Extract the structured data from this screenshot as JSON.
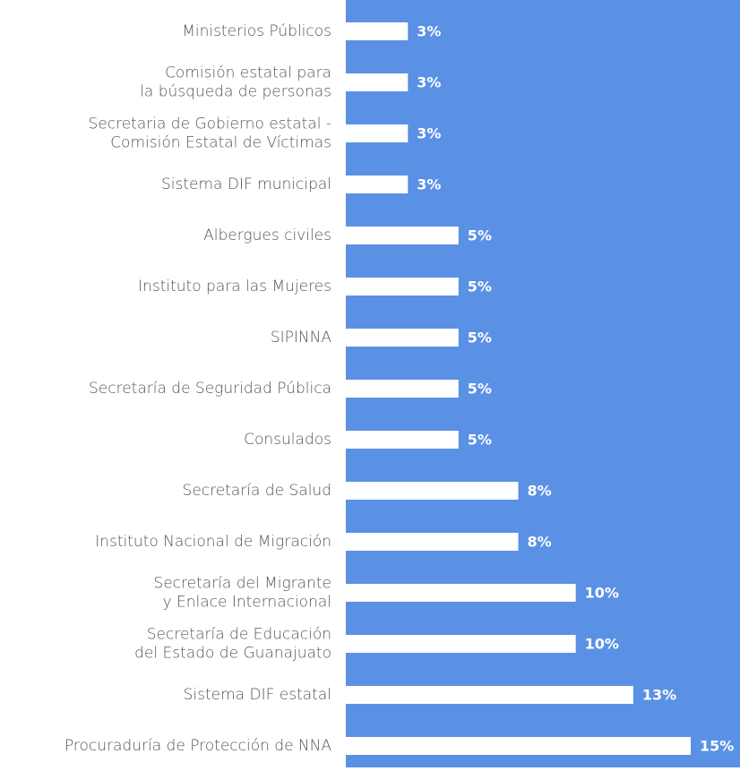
{
  "chart_data": {
    "type": "bar",
    "orientation": "horizontal",
    "categories": [
      [
        "Ministerios Públicos"
      ],
      [
        "Comisión estatal para",
        "la búsqueda de personas"
      ],
      [
        "Secretaria de Gobierno estatal -",
        "Comisión Estatal de Víctimas"
      ],
      [
        "Sistema DIF municipal"
      ],
      [
        "Albergues civiles"
      ],
      [
        "Instituto para las Mujeres"
      ],
      [
        "SIPINNA"
      ],
      [
        "Secretaría de Seguridad Pública"
      ],
      [
        "Consulados"
      ],
      [
        "Secretaría de Salud"
      ],
      [
        "Instituto Nacional de Migración"
      ],
      [
        "Secretaría del Migrante",
        "y Enlace Internacional"
      ],
      [
        "Secretaría de Educación",
        "del Estado de Guanajuato"
      ],
      [
        "Sistema DIF estatal"
      ],
      [
        "Procuraduría de Protección de NNA"
      ]
    ],
    "values": [
      2.7,
      2.7,
      2.7,
      2.7,
      4.9,
      4.9,
      4.9,
      4.9,
      4.9,
      7.5,
      7.5,
      10,
      10,
      12.5,
      15
    ],
    "value_labels": [
      "3%",
      "3%",
      "3%",
      "3%",
      "5%",
      "5%",
      "5%",
      "5%",
      "5%",
      "8%",
      "8%",
      "10%",
      "10%",
      "13%",
      "15%"
    ],
    "color": "#ffffff",
    "background_color": "#5b91e5"
  }
}
